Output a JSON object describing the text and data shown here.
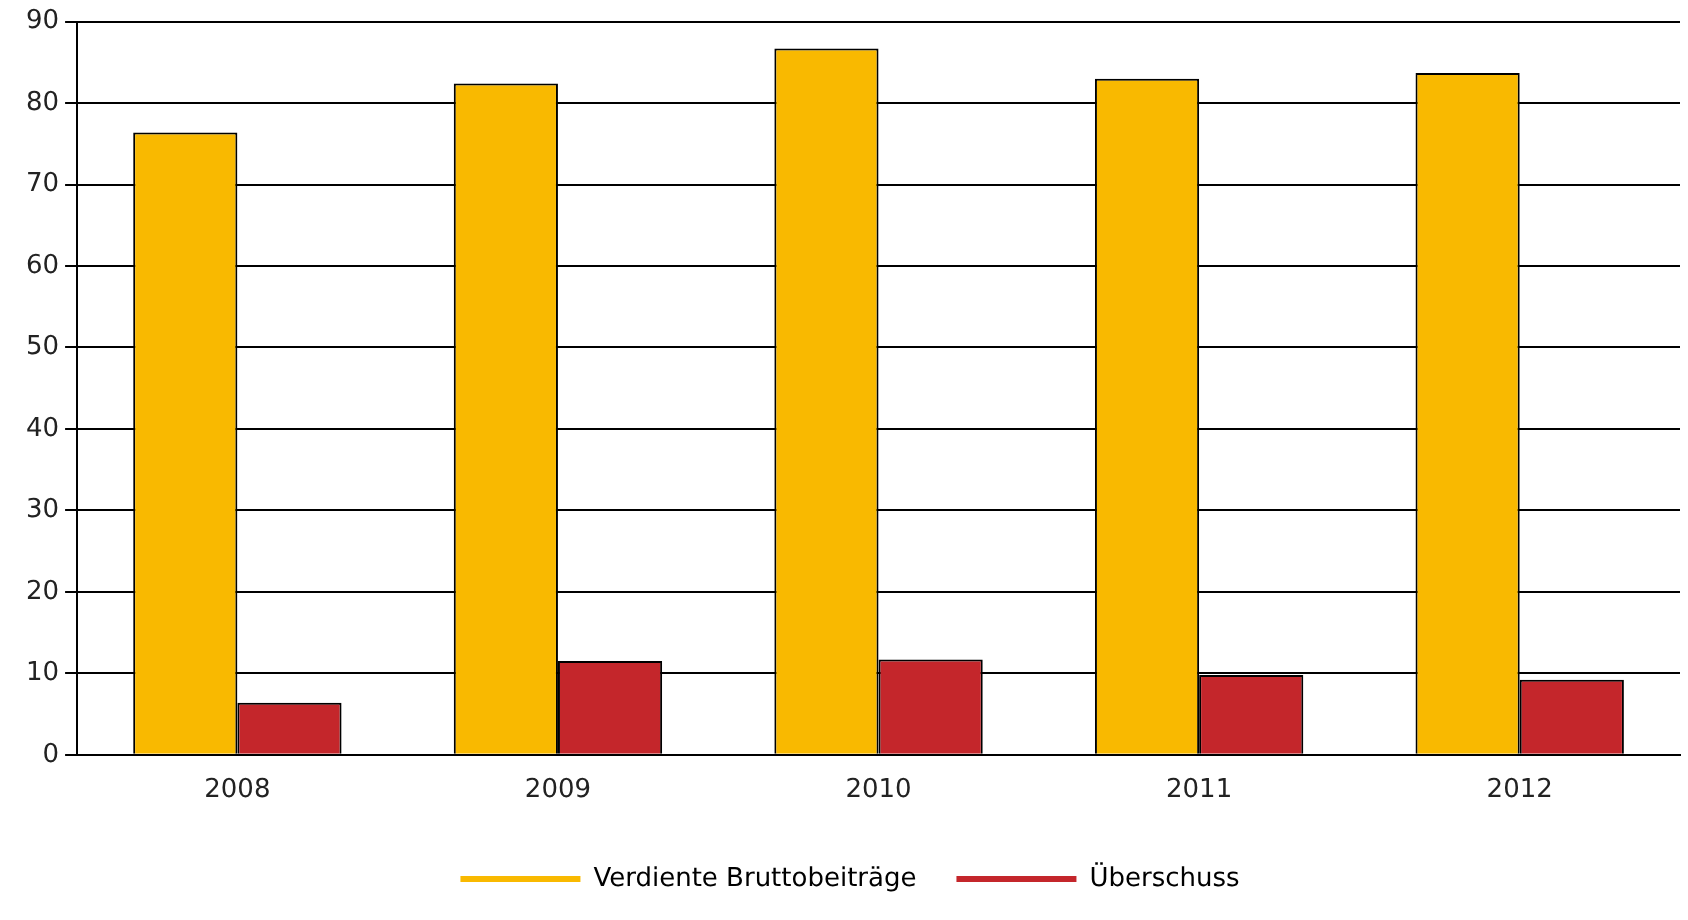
{
  "chart_data": {
    "type": "bar",
    "categories": [
      "2008",
      "2009",
      "2010",
      "2011",
      "2012"
    ],
    "series": [
      {
        "name": "Verdiente Bruttobeiträge",
        "color": "#f9b900",
        "values": [
          76.4,
          82.4,
          86.7,
          83.0,
          83.7
        ]
      },
      {
        "name": "Überschuss",
        "color": "#c4262b",
        "values": [
          6.4,
          11.5,
          11.7,
          9.8,
          9.2
        ]
      }
    ],
    "ylim": [
      0,
      90
    ],
    "yticks": [
      0,
      10,
      20,
      30,
      40,
      50,
      60,
      70,
      80,
      90
    ],
    "grid": "y",
    "legend": "bottom"
  }
}
